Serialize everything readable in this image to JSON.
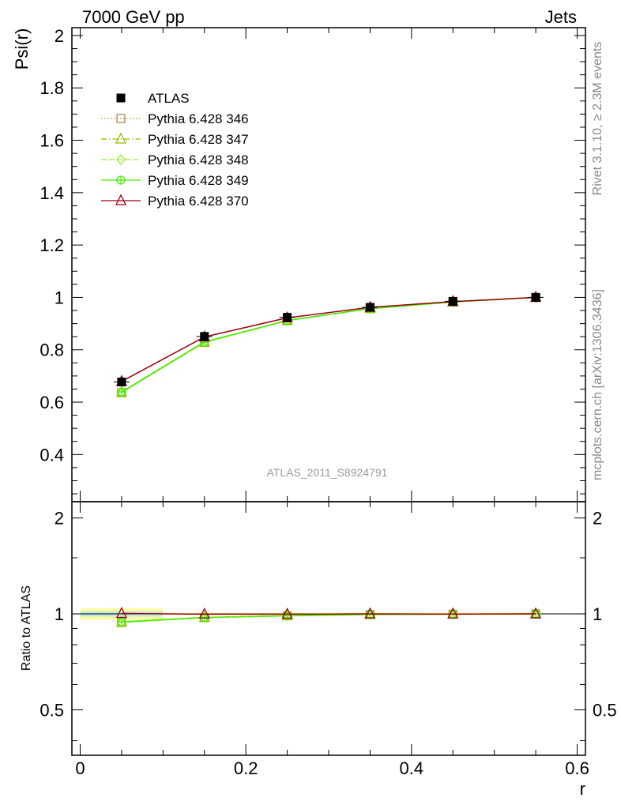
{
  "header": {
    "left": "7000 GeV pp",
    "right": "Jets"
  },
  "side_labels": {
    "rivet": "Rivet 3.1.10, ≥ 2.3M events",
    "mcplots": "mcplots.cern.ch [arXiv:1306.3436]"
  },
  "watermark": "ATLAS_2011_S8924791",
  "chart_data": {
    "type": "line",
    "xlabel": "r",
    "ylabel": "Psi(r)",
    "ratio_ylabel": "Ratio to ATLAS",
    "xlim": [
      -0.01,
      0.61
    ],
    "ylim": [
      0.22,
      2.03
    ],
    "ratio_ylim": [
      0.36,
      2.25
    ],
    "x_ticks": [
      "0",
      "0.2",
      "0.4",
      "0.6"
    ],
    "y_ticks": [
      "0.4",
      "0.6",
      "0.8",
      "1",
      "1.2",
      "1.4",
      "1.6",
      "1.8",
      "2"
    ],
    "ratio_y_ticks": [
      "0.5",
      "1",
      "2"
    ],
    "x": [
      0.05,
      0.15,
      0.25,
      0.35,
      0.45,
      0.55
    ],
    "data": {
      "name": "ATLAS",
      "values": [
        0.677,
        0.851,
        0.924,
        0.962,
        0.985,
        1.0
      ]
    },
    "series": [
      {
        "name": "Pythia 6.428 346",
        "values": [
          0.636,
          0.828,
          0.911,
          0.957,
          0.983,
          1.0
        ],
        "ratio": [
          0.94,
          0.973,
          0.986,
          0.995,
          0.998,
          1.0
        ],
        "color": "#b5894f",
        "marker": "square-open",
        "dash": "1.5,2.5"
      },
      {
        "name": "Pythia 6.428 347",
        "values": [
          0.638,
          0.829,
          0.912,
          0.958,
          0.983,
          1.0
        ],
        "ratio": [
          0.942,
          0.974,
          0.987,
          0.996,
          0.998,
          1.0
        ],
        "color": "#99bb00",
        "marker": "triangle-open",
        "dash": "7,3,1.5,3"
      },
      {
        "name": "Pythia 6.428 348",
        "values": [
          0.637,
          0.828,
          0.911,
          0.957,
          0.982,
          1.0
        ],
        "ratio": [
          0.941,
          0.973,
          0.986,
          0.995,
          0.997,
          1.0
        ],
        "color": "#99ee33",
        "marker": "diamond-open",
        "dash": "7,3"
      },
      {
        "name": "Pythia 6.428 349",
        "values": [
          0.639,
          0.83,
          0.912,
          0.957,
          0.983,
          1.0
        ],
        "ratio": [
          0.944,
          0.975,
          0.987,
          0.995,
          0.998,
          1.0
        ],
        "color": "#44ee00",
        "marker": "circle-cross",
        "dash": ""
      },
      {
        "name": "Pythia 6.428 370",
        "values": [
          0.679,
          0.849,
          0.922,
          0.962,
          0.984,
          1.0
        ],
        "ratio": [
          1.003,
          0.998,
          0.998,
          1.0,
          0.999,
          1.0
        ],
        "color": "#990011",
        "marker": "triangle-open",
        "dash": ""
      }
    ],
    "legend_position": "top-left",
    "uncertainty_band": {
      "x_range": [
        0.0,
        0.1
      ],
      "ratio_range": [
        0.96,
        1.04
      ],
      "outer_color": "#ffff99",
      "inner_color": "#aaddff"
    }
  }
}
